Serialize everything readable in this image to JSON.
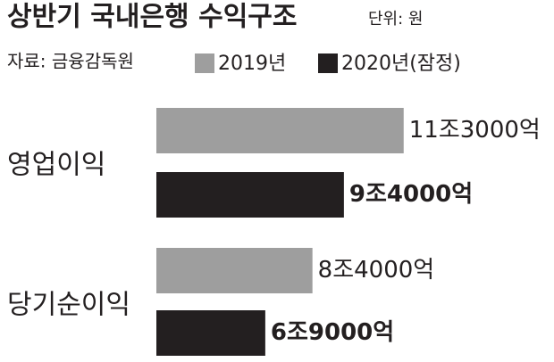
{
  "chart_data": {
    "type": "bar",
    "orientation": "horizontal",
    "title": "상반기 국내은행 수익구조",
    "unit": "단위: 원",
    "source": "자료: 금융감독원",
    "categories": [
      "영업이익",
      "당기순이익"
    ],
    "series": [
      {
        "name": "2019년",
        "color": "#9e9e9e",
        "values": [
          11.3,
          8.4
        ],
        "value_labels": [
          "11조3000억",
          "8조4000억"
        ]
      },
      {
        "name": "2020년(잠정)",
        "color": "#231f20",
        "values": [
          9.4,
          6.9
        ],
        "value_labels": [
          "9조4000억",
          "6조9000억"
        ]
      }
    ]
  }
}
